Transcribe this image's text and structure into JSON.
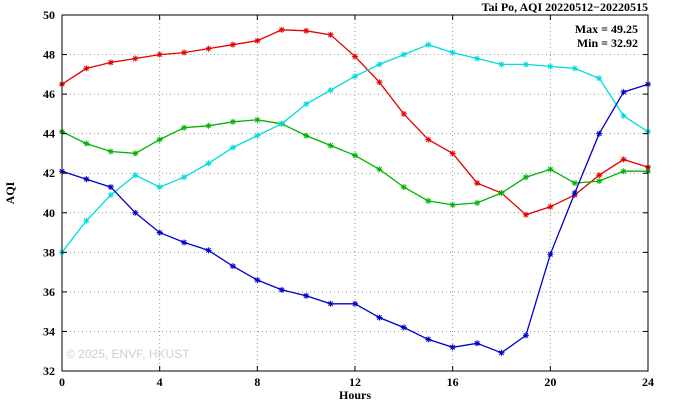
{
  "chart_data": {
    "type": "line",
    "title": "Tai Po, AQI 20220512−20220515",
    "xlabel": "Hours",
    "ylabel": "AQI",
    "xlim": [
      0,
      24
    ],
    "ylim": [
      32,
      50
    ],
    "x_ticks": [
      0,
      4,
      8,
      12,
      16,
      20,
      24
    ],
    "y_ticks": [
      32,
      34,
      36,
      38,
      40,
      42,
      44,
      46,
      48,
      50
    ],
    "grid": true,
    "legend_position": "none",
    "annotations": {
      "max_label": "Max = 49.25",
      "min_label": "Min = 32.92"
    },
    "max_value": 49.25,
    "min_value": 32.92,
    "watermark": "© 2025, ENVF, HKUST",
    "x": [
      0,
      1,
      2,
      3,
      4,
      5,
      6,
      7,
      8,
      9,
      10,
      11,
      12,
      13,
      14,
      15,
      16,
      17,
      18,
      19,
      20,
      21,
      22,
      23,
      24
    ],
    "series": [
      {
        "name": "red-series",
        "color": "#e60000",
        "values": [
          46.5,
          47.3,
          47.6,
          47.8,
          48.0,
          48.1,
          48.3,
          48.5,
          48.7,
          49.25,
          49.2,
          49.0,
          47.9,
          46.6,
          45.0,
          43.7,
          43.0,
          41.5,
          41.0,
          39.9,
          40.3,
          40.9,
          41.9,
          42.7,
          42.3
        ]
      },
      {
        "name": "green-series",
        "color": "#00b400",
        "values": [
          44.1,
          43.5,
          43.1,
          43.0,
          43.7,
          44.3,
          44.4,
          44.6,
          44.7,
          44.5,
          43.9,
          43.4,
          42.9,
          42.2,
          41.3,
          40.6,
          40.4,
          40.5,
          41.0,
          41.8,
          42.2,
          41.5,
          41.6,
          42.1,
          42.1
        ]
      },
      {
        "name": "cyan-series",
        "color": "#00dcdc",
        "values": [
          38.0,
          39.6,
          40.9,
          41.9,
          41.3,
          41.8,
          42.5,
          43.3,
          43.9,
          44.5,
          45.5,
          46.2,
          46.9,
          47.5,
          48.0,
          48.5,
          48.1,
          47.8,
          47.5,
          47.5,
          47.4,
          47.3,
          46.8,
          44.9,
          44.1
        ]
      },
      {
        "name": "blue-series",
        "color": "#0000cd",
        "values": [
          42.1,
          41.7,
          41.3,
          40.0,
          39.0,
          38.5,
          38.1,
          37.3,
          36.6,
          36.1,
          35.8,
          35.4,
          35.4,
          34.7,
          34.2,
          33.6,
          33.2,
          33.4,
          32.92,
          33.8,
          37.9,
          41.0,
          44.0,
          46.1,
          46.5
        ]
      }
    ]
  }
}
